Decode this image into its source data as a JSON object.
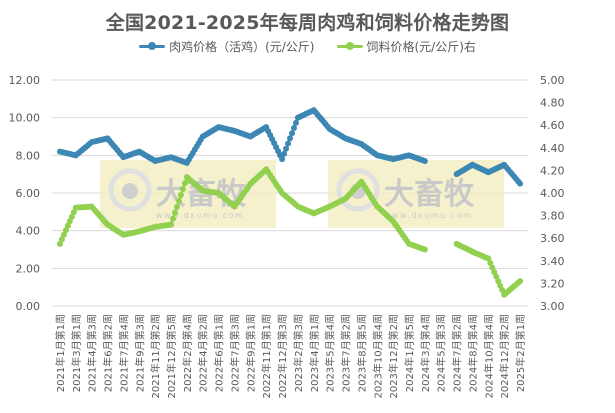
{
  "chart_data": {
    "type": "line",
    "title": "全国2021-2025年每周肉鸡和饲料价格走势图",
    "legend_position": "top",
    "grid": true,
    "xlabel": "",
    "ylabel_left": "",
    "ylabel_right": "",
    "ylim_left": [
      0,
      12
    ],
    "ylim_right": [
      3.0,
      5.0
    ],
    "y_ticks_left": [
      "0.00",
      "2.00",
      "4.00",
      "6.00",
      "8.00",
      "10.00",
      "12.00"
    ],
    "y_ticks_right": [
      "3.00",
      "3.20",
      "3.40",
      "3.60",
      "3.80",
      "4.00",
      "4.20",
      "4.40",
      "4.60",
      "4.80",
      "5.00"
    ],
    "categories": [
      "2021年1月第1周",
      "2021年3月第1周",
      "2021年4月第3周",
      "2021年6月第2周",
      "2021年7月第4周",
      "2021年9月第3周",
      "2021年11月第2周",
      "2021年12月第5周",
      "2022年2月第4周",
      "2022年4月第2周",
      "2022年6月第1周",
      "2022年7月第3周",
      "2022年9月第1周",
      "2022年11月第1周",
      "2022年12月第3周",
      "2023年2月第3周",
      "2023年4月第1周",
      "2023年5月第4周",
      "2023年7月第2周",
      "2023年8月第5周",
      "2023年10月第4周",
      "2023年12月第2周",
      "2024年1月第5周",
      "2024年3月第4周",
      "2024年5月第3周",
      "2024年7月第2周",
      "2024年8月第4周",
      "2024年10月第4周",
      "2024年12月第2周",
      "2025年2月第1周"
    ],
    "series": [
      {
        "name": "肉鸡价格（活鸡）(元/公斤)",
        "axis": "left",
        "color": "#3C87B3",
        "values": [
          8.2,
          8.0,
          8.7,
          8.9,
          7.9,
          8.2,
          7.7,
          7.9,
          7.6,
          9.0,
          9.5,
          9.3,
          9.0,
          9.5,
          7.8,
          10.0,
          10.4,
          9.4,
          8.9,
          8.6,
          8.0,
          7.8,
          8.0,
          7.7,
          null,
          7.0,
          7.5,
          7.1,
          7.5,
          6.5
        ]
      },
      {
        "name": "饲料价格(元/公斤)右",
        "axis": "right",
        "color": "#92D050",
        "values": [
          3.55,
          3.87,
          3.88,
          3.72,
          3.63,
          3.66,
          3.7,
          3.72,
          4.14,
          4.02,
          4.0,
          3.88,
          4.08,
          4.21,
          4.0,
          3.88,
          3.82,
          3.88,
          3.95,
          4.1,
          3.88,
          3.75,
          3.55,
          3.5,
          null,
          3.55,
          3.48,
          3.42,
          3.1,
          3.22
        ]
      }
    ]
  },
  "legend": {
    "items": [
      {
        "label": "肉鸡价格（活鸡）(元/公斤)",
        "color": "#3C87B3"
      },
      {
        "label": "饲料价格(元/公斤)右",
        "color": "#92D050"
      }
    ]
  },
  "watermark": {
    "text": "大畜牧",
    "url_text": "www.dxumu.com"
  }
}
